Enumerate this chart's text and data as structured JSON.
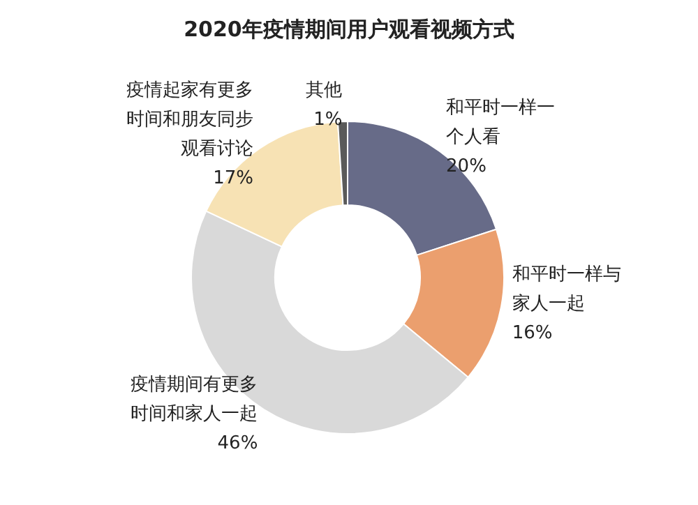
{
  "chart_data": {
    "type": "donut",
    "title": "2020年疫情期间用户观看视频方式",
    "categories": [
      "和平时一样一个人看",
      "和平时一样与家人一起",
      "疫情期间有更多时间和家人一起",
      "疫情起家有更多时间和朋友同步观看讨论",
      "其他"
    ],
    "values": [
      20,
      16,
      46,
      17,
      1
    ],
    "value_labels": [
      "20%",
      "16%",
      "46%",
      "17%",
      "1%"
    ],
    "colors": [
      "#676b88",
      "#eb9f6e",
      "#d9d9d9",
      "#f7e2b4",
      "#5a5a5a"
    ]
  }
}
